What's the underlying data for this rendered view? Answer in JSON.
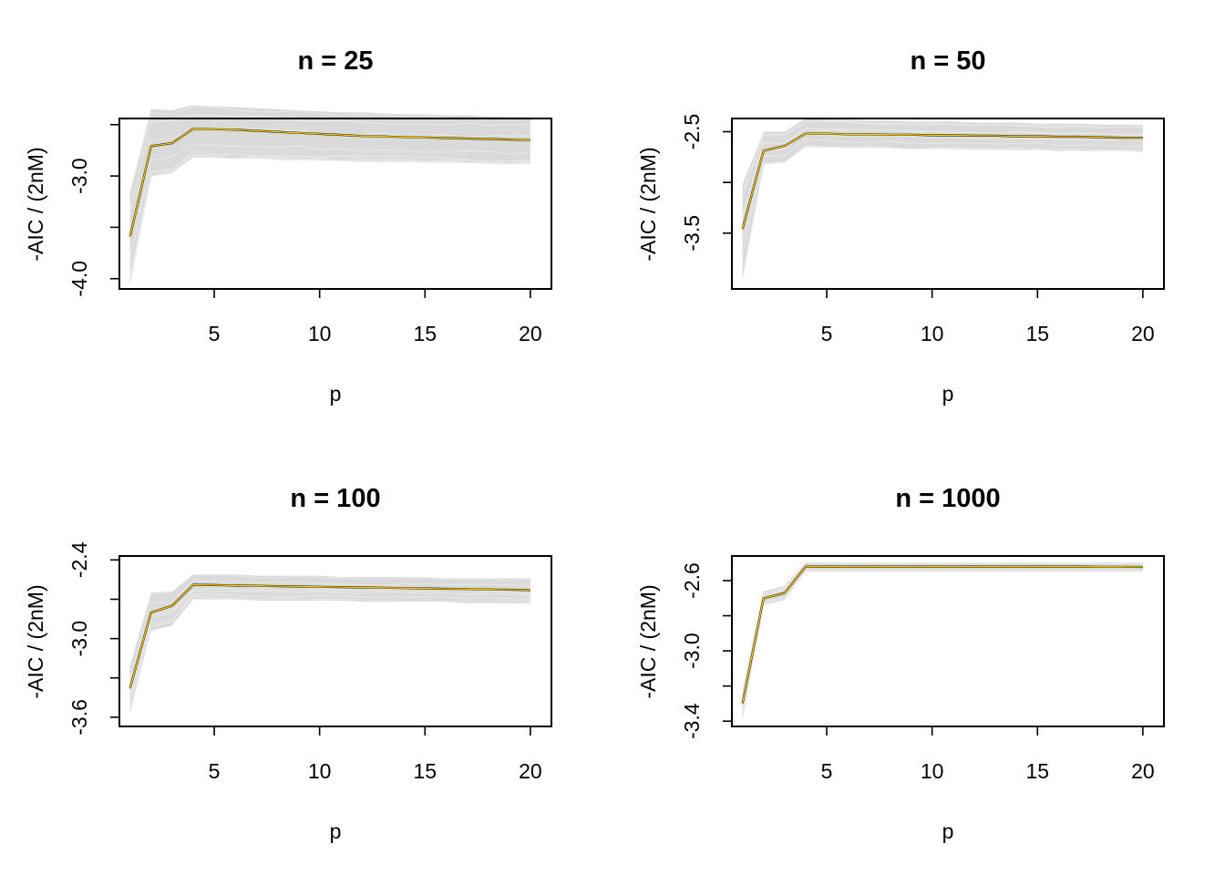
{
  "chart_data": [
    {
      "type": "line",
      "title": "n = 25",
      "xlabel": "p",
      "ylabel": "-AIC / (2nM)",
      "xlim": [
        0.5,
        21
      ],
      "ylim": [
        -4.1,
        -2.44
      ],
      "x_ticks": [
        5,
        10,
        15,
        20
      ],
      "x_tick_labels": [
        "5",
        "10",
        "15",
        "20"
      ],
      "y_ticks": [
        -4.0,
        -3.5,
        -3.0,
        -2.5
      ],
      "y_tick_labels": [
        "-4.0",
        "",
        "-3.0",
        ""
      ],
      "grid": false,
      "legend": "none",
      "colors": {
        "simulations": "#dadada",
        "mean": "#000000",
        "median": "#ffd000"
      },
      "series": [
        {
          "x": [
            1,
            2,
            3,
            4,
            5,
            6,
            7,
            8,
            9,
            10,
            11,
            12,
            13,
            14,
            15,
            16,
            17,
            18,
            19,
            20
          ],
          "values": [
            -3.59,
            -2.71,
            -2.68,
            -2.54,
            -2.545,
            -2.55,
            -2.56,
            -2.57,
            -2.58,
            -2.59,
            -2.6,
            -2.61,
            -2.615,
            -2.62,
            -2.625,
            -2.63,
            -2.635,
            -2.64,
            -2.645,
            -2.65
          ]
        }
      ],
      "band_upper": [
        -3.15,
        -2.35,
        -2.36,
        -2.31,
        -2.32,
        -2.33,
        -2.34,
        -2.35,
        -2.36,
        -2.37,
        -2.38,
        -2.38,
        -2.39,
        -2.4,
        -2.4,
        -2.41,
        -2.41,
        -2.42,
        -2.42,
        -2.43
      ],
      "band_lower": [
        -4.05,
        -3.0,
        -2.97,
        -2.82,
        -2.82,
        -2.83,
        -2.83,
        -2.84,
        -2.84,
        -2.85,
        -2.85,
        -2.86,
        -2.86,
        -2.86,
        -2.87,
        -2.87,
        -2.87,
        -2.88,
        -2.88,
        -2.88
      ]
    },
    {
      "type": "line",
      "title": "n = 50",
      "xlabel": "p",
      "ylabel": "-AIC / (2nM)",
      "xlim": [
        0.5,
        21
      ],
      "ylim": [
        -4.05,
        -2.37
      ],
      "x_ticks": [
        5,
        10,
        15,
        20
      ],
      "x_tick_labels": [
        "5",
        "10",
        "15",
        "20"
      ],
      "y_ticks": [
        -3.5,
        -3.0,
        -2.5
      ],
      "y_tick_labels": [
        "-3.5",
        "",
        "-2.5"
      ],
      "grid": false,
      "legend": "none",
      "colors": {
        "simulations": "#dadada",
        "mean": "#000000",
        "median": "#ffd000"
      },
      "series": [
        {
          "x": [
            1,
            2,
            3,
            4,
            5,
            6,
            7,
            8,
            9,
            10,
            11,
            12,
            13,
            14,
            15,
            16,
            17,
            18,
            19,
            20
          ],
          "values": [
            -3.46,
            -2.69,
            -2.64,
            -2.52,
            -2.52,
            -2.525,
            -2.525,
            -2.53,
            -2.53,
            -2.535,
            -2.535,
            -2.54,
            -2.54,
            -2.545,
            -2.545,
            -2.55,
            -2.55,
            -2.555,
            -2.56,
            -2.56
          ]
        }
      ],
      "band_upper": [
        -3.02,
        -2.5,
        -2.5,
        -2.37,
        -2.38,
        -2.38,
        -2.39,
        -2.39,
        -2.4,
        -2.4,
        -2.4,
        -2.41,
        -2.41,
        -2.41,
        -2.42,
        -2.42,
        -2.42,
        -2.43,
        -2.43,
        -2.43
      ],
      "band_lower": [
        -3.95,
        -2.82,
        -2.8,
        -2.65,
        -2.65,
        -2.66,
        -2.66,
        -2.66,
        -2.67,
        -2.67,
        -2.67,
        -2.68,
        -2.68,
        -2.68,
        -2.68,
        -2.69,
        -2.69,
        -2.69,
        -2.69,
        -2.7
      ]
    },
    {
      "type": "line",
      "title": "n = 100",
      "xlabel": "p",
      "ylabel": "-AIC / (2nM)",
      "xlim": [
        0.5,
        21
      ],
      "ylim": [
        -3.67,
        -2.37
      ],
      "x_ticks": [
        5,
        10,
        15,
        20
      ],
      "x_tick_labels": [
        "5",
        "10",
        "15",
        "20"
      ],
      "y_ticks": [
        -3.6,
        -3.3,
        -3.0,
        -2.7,
        -2.4
      ],
      "y_tick_labels": [
        "-3.6",
        "",
        "-3.0",
        "",
        "-2.4"
      ],
      "grid": false,
      "legend": "none",
      "colors": {
        "simulations": "#dadada",
        "mean": "#000000",
        "median": "#ffd000"
      },
      "series": [
        {
          "x": [
            1,
            2,
            3,
            4,
            5,
            6,
            7,
            8,
            9,
            10,
            11,
            12,
            13,
            14,
            15,
            16,
            17,
            18,
            19,
            20
          ],
          "values": [
            -3.38,
            -2.8,
            -2.75,
            -2.59,
            -2.592,
            -2.595,
            -2.597,
            -2.6,
            -2.602,
            -2.605,
            -2.607,
            -2.61,
            -2.612,
            -2.615,
            -2.617,
            -2.62,
            -2.622,
            -2.625,
            -2.627,
            -2.63
          ]
        }
      ],
      "band_upper": [
        -3.2,
        -2.65,
        -2.64,
        -2.51,
        -2.51,
        -2.51,
        -2.52,
        -2.52,
        -2.52,
        -2.52,
        -2.53,
        -2.53,
        -2.53,
        -2.53,
        -2.53,
        -2.54,
        -2.54,
        -2.54,
        -2.54,
        -2.54
      ],
      "band_lower": [
        -3.57,
        -2.94,
        -2.9,
        -2.7,
        -2.7,
        -2.7,
        -2.71,
        -2.71,
        -2.71,
        -2.71,
        -2.71,
        -2.72,
        -2.72,
        -2.72,
        -2.72,
        -2.72,
        -2.73,
        -2.73,
        -2.73,
        -2.73
      ]
    },
    {
      "type": "line",
      "title": "n = 1000",
      "xlabel": "p",
      "ylabel": "-AIC / (2nM)",
      "xlim": [
        0.5,
        21
      ],
      "ylim": [
        -3.43,
        -2.46
      ],
      "x_ticks": [
        5,
        10,
        15,
        20
      ],
      "x_tick_labels": [
        "5",
        "10",
        "15",
        "20"
      ],
      "y_ticks": [
        -3.4,
        -3.2,
        -3.0,
        -2.8,
        -2.6
      ],
      "y_tick_labels": [
        "-3.4",
        "",
        "-3.0",
        "",
        "-2.6"
      ],
      "grid": false,
      "legend": "none",
      "colors": {
        "simulations": "#dadada",
        "mean": "#000000",
        "median": "#ffd000"
      },
      "series": [
        {
          "x": [
            1,
            2,
            3,
            4,
            5,
            6,
            7,
            8,
            9,
            10,
            11,
            12,
            13,
            14,
            15,
            16,
            17,
            18,
            19,
            20
          ],
          "values": [
            -3.3,
            -2.7,
            -2.67,
            -2.52,
            -2.52,
            -2.52,
            -2.52,
            -2.52,
            -2.52,
            -2.52,
            -2.52,
            -2.52,
            -2.52,
            -2.52,
            -2.52,
            -2.52,
            -2.52,
            -2.521,
            -2.521,
            -2.522
          ]
        }
      ],
      "band_upper": [
        -3.22,
        -2.66,
        -2.63,
        -2.5,
        -2.5,
        -2.5,
        -2.5,
        -2.5,
        -2.5,
        -2.5,
        -2.5,
        -2.5,
        -2.5,
        -2.5,
        -2.5,
        -2.5,
        -2.5,
        -2.5,
        -2.5,
        -2.5
      ],
      "band_lower": [
        -3.39,
        -2.74,
        -2.71,
        -2.55,
        -2.55,
        -2.55,
        -2.55,
        -2.55,
        -2.55,
        -2.55,
        -2.55,
        -2.55,
        -2.55,
        -2.55,
        -2.55,
        -2.55,
        -2.55,
        -2.55,
        -2.55,
        -2.55
      ]
    }
  ]
}
